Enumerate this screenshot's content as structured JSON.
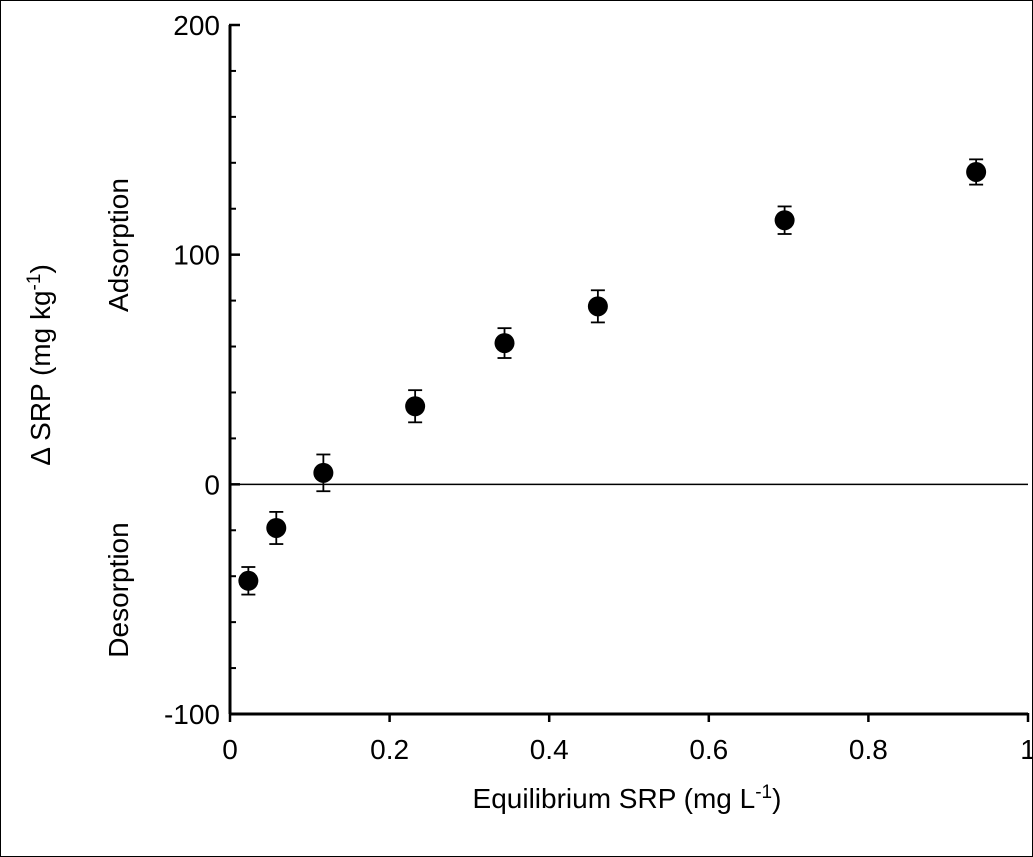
{
  "chart_data": {
    "type": "scatter",
    "xlabel_main": "Equilibrium SRP (mg L",
    "xlabel_sup": "-1",
    "xlabel_close": ")",
    "ylabel_main": "Δ SRP (mg kg",
    "ylabel_sup": "-1",
    "ylabel_close": ")",
    "annotations": {
      "upper": "Adsorption",
      "lower": "Desorption"
    },
    "xlim": [
      0,
      1
    ],
    "ylim": [
      -100,
      200
    ],
    "x_ticks": [
      0,
      0.2,
      0.4,
      0.6,
      0.8,
      1
    ],
    "x_tick_labels": [
      "0",
      "0.2",
      "0.4",
      "0.6",
      "0.8",
      "1"
    ],
    "y_ticks": [
      -100,
      0,
      100,
      200
    ],
    "y_tick_labels": [
      "-100",
      "0",
      "100",
      "200"
    ],
    "zero_line": true,
    "grid": false,
    "points": [
      {
        "x": 0.023,
        "y": -42,
        "err": 6
      },
      {
        "x": 0.058,
        "y": -19,
        "err": 7
      },
      {
        "x": 0.117,
        "y": 5,
        "err": 8
      },
      {
        "x": 0.232,
        "y": 34,
        "err": 7
      },
      {
        "x": 0.344,
        "y": 61.5,
        "err": 6.5
      },
      {
        "x": 0.461,
        "y": 77.5,
        "err": 7
      },
      {
        "x": 0.695,
        "y": 115,
        "err": 6
      },
      {
        "x": 0.935,
        "y": 136,
        "err": 5.5
      }
    ],
    "marker_color": "#000000"
  }
}
